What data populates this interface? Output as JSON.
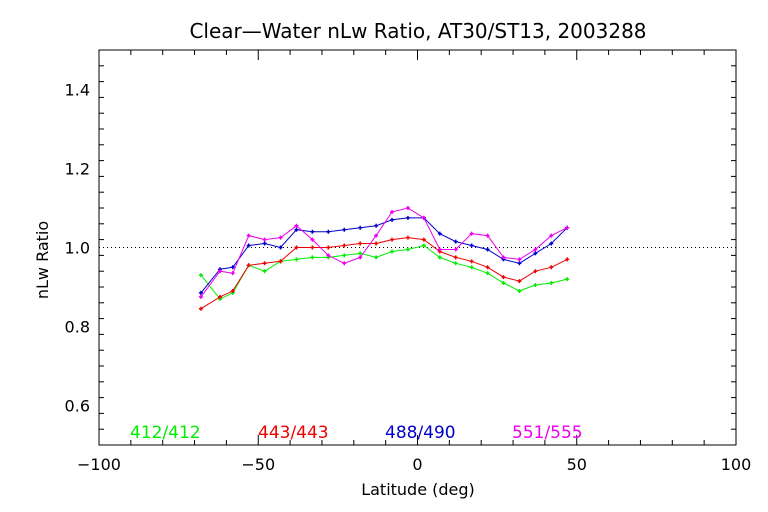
{
  "chart_data": {
    "type": "line",
    "title": "Clear—Water nLw Ratio, AT30/ST13, 2003288",
    "xlabel": "Latitude (deg)",
    "ylabel": "nLw Ratio",
    "xlim": [
      -100,
      100
    ],
    "ylim": [
      0.5,
      1.5
    ],
    "xticks": [
      -100,
      -50,
      0,
      50,
      100
    ],
    "yticks": [
      0.6,
      0.8,
      1.0,
      1.2,
      1.4
    ],
    "xtick_labels": [
      "−100",
      "−50",
      "0",
      "50",
      "100"
    ],
    "ytick_labels": [
      "0.6",
      "0.8",
      "1.0",
      "1.2",
      "1.4"
    ],
    "reference_line": 1.0,
    "grid": false,
    "legend_position": "bottom-inside",
    "x": [
      -68,
      -62,
      -58,
      -53,
      -48,
      -43,
      -38,
      -33,
      -28,
      -23,
      -18,
      -13,
      -8,
      -3,
      2,
      7,
      12,
      17,
      22,
      27,
      32,
      37,
      42,
      47
    ],
    "series": [
      {
        "name": "412/412",
        "color": "#00ee00",
        "values": [
          0.93,
          0.87,
          0.885,
          0.955,
          0.94,
          0.965,
          0.97,
          0.975,
          0.975,
          0.98,
          0.985,
          0.975,
          0.99,
          0.995,
          1.005,
          0.975,
          0.96,
          0.95,
          0.935,
          0.91,
          0.89,
          0.905,
          0.91,
          0.92
        ]
      },
      {
        "name": "443/443",
        "color": "#ee0000",
        "values": [
          0.845,
          0.875,
          0.89,
          0.955,
          0.96,
          0.965,
          1.0,
          1.0,
          1.0,
          1.005,
          1.01,
          1.01,
          1.02,
          1.025,
          1.02,
          0.99,
          0.975,
          0.965,
          0.95,
          0.925,
          0.915,
          0.94,
          0.95,
          0.97
        ]
      },
      {
        "name": "488/490",
        "color": "#0000cc",
        "values": [
          0.885,
          0.945,
          0.95,
          1.005,
          1.01,
          1.0,
          1.045,
          1.04,
          1.04,
          1.045,
          1.05,
          1.055,
          1.07,
          1.075,
          1.075,
          1.035,
          1.015,
          1.005,
          0.995,
          0.97,
          0.96,
          0.985,
          1.01,
          1.05
        ]
      },
      {
        "name": "551/555",
        "color": "#ee00ee",
        "values": [
          0.875,
          0.94,
          0.935,
          1.03,
          1.02,
          1.025,
          1.055,
          1.02,
          0.98,
          0.96,
          0.975,
          1.03,
          1.09,
          1.1,
          1.075,
          0.995,
          0.995,
          1.035,
          1.03,
          0.975,
          0.97,
          0.995,
          1.03,
          1.05
        ]
      }
    ]
  }
}
